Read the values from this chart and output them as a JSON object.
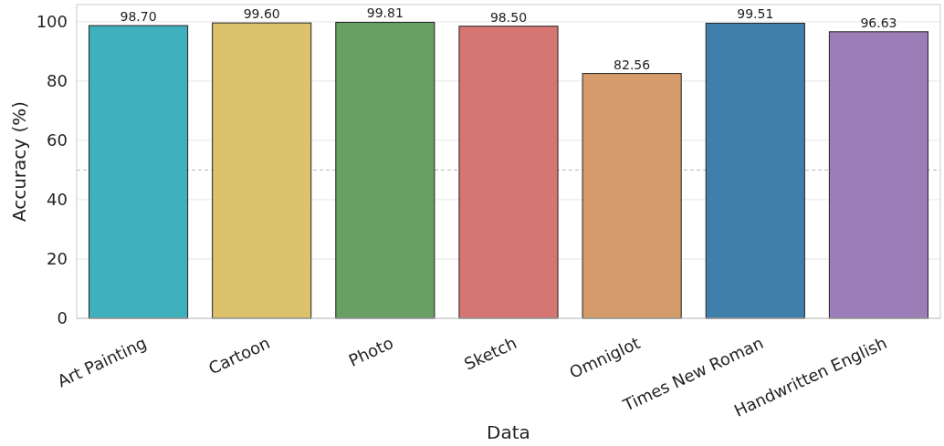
{
  "chart_data": {
    "type": "bar",
    "xlabel": "Data",
    "ylabel": "Accuracy (%)",
    "categories": [
      "Art Painting",
      "Cartoon",
      "Photo",
      "Sketch",
      "Omniglot",
      "Times New Roman",
      "Handwritten English"
    ],
    "values": [
      98.7,
      99.6,
      99.81,
      98.5,
      82.56,
      99.51,
      96.63
    ],
    "colors": [
      "#3fb0bd",
      "#dbc26b",
      "#68a063",
      "#d57672",
      "#d59b6a",
      "#3f7faa",
      "#9b7eb8"
    ],
    "value_labels": [
      "98.70",
      "99.60",
      "99.81",
      "98.50",
      "82.56",
      "99.51",
      "96.63"
    ],
    "ylim": [
      0,
      105.8
    ],
    "yticks": [
      0,
      20,
      40,
      60,
      80,
      100
    ],
    "grid": "y",
    "ref_lines": [
      {
        "axis": "y",
        "value": 50,
        "color": "#b8b8b8",
        "line_style": "dashed"
      }
    ]
  }
}
